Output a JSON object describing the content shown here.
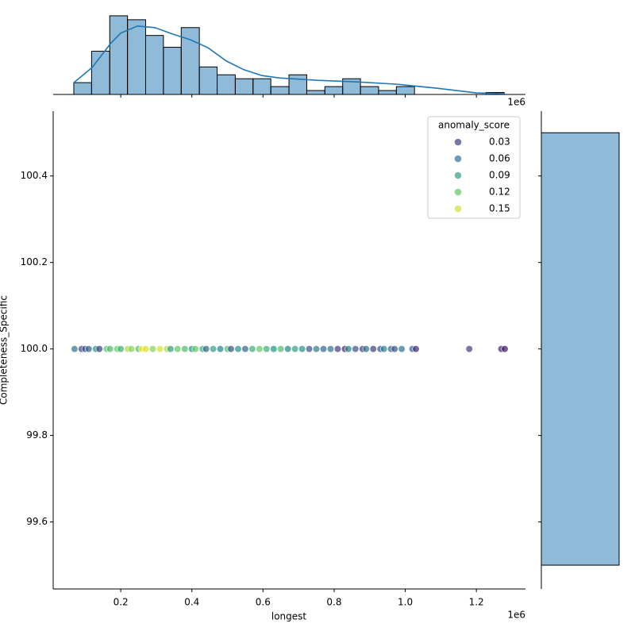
{
  "chart_data": {
    "type": "jointplot",
    "xlabel": "longest",
    "ylabel": "Completeness_Specific",
    "x_offset_text": "1e6",
    "xlim": [
      0.01,
      1.338
    ],
    "ylim": [
      99.445,
      100.55
    ],
    "xticks": [
      0.2,
      0.4,
      0.6,
      0.8,
      {
        "value": 1,
        "label": "1.0"
      },
      1.2
    ],
    "yticks": [
      99.6,
      99.8,
      {
        "value": 100,
        "label": "100.0"
      },
      100.2,
      100.4
    ],
    "hue_label": "anomaly_score",
    "hue_lim": [
      0,
      0.16
    ],
    "colormap": [
      "#440154",
      "#3b528b",
      "#21918c",
      "#5ec962",
      "#fde725"
    ],
    "legend_values": [
      0.03,
      0.06,
      0.09,
      0.12,
      0.15
    ],
    "legend_position": "upper right",
    "scatter": {
      "x": [
        0.07,
        0.09,
        0.1,
        0.11,
        0.13,
        0.14,
        0.16,
        0.17,
        0.19,
        0.2,
        0.22,
        0.23,
        0.25,
        0.26,
        0.27,
        0.29,
        0.31,
        0.33,
        0.34,
        0.36,
        0.38,
        0.4,
        0.41,
        0.43,
        0.44,
        0.46,
        0.48,
        0.5,
        0.51,
        0.53,
        0.55,
        0.57,
        0.59,
        0.61,
        0.63,
        0.65,
        0.67,
        0.69,
        0.71,
        0.73,
        0.75,
        0.77,
        0.79,
        0.81,
        0.83,
        0.84,
        0.86,
        0.88,
        0.89,
        0.91,
        0.93,
        0.94,
        0.96,
        0.97,
        0.99,
        1.02,
        1.03,
        1.18,
        1.27,
        1.28
      ],
      "y": [
        100,
        100,
        100,
        100,
        100,
        100,
        100,
        100,
        100,
        100,
        100,
        100,
        100,
        100,
        100,
        100,
        100,
        100,
        100,
        100,
        100,
        100,
        100,
        100,
        100,
        100,
        100,
        100,
        100,
        100,
        100,
        100,
        100,
        100,
        100,
        100,
        100,
        100,
        100,
        100,
        100,
        100,
        100,
        100,
        100,
        100,
        100,
        100,
        100,
        100,
        100,
        100,
        100,
        100,
        100,
        100,
        100,
        100,
        100,
        100
      ],
      "hue": [
        0.06,
        0.03,
        0.04,
        0.05,
        0.08,
        0.03,
        0.12,
        0.11,
        0.12,
        0.1,
        0.14,
        0.13,
        0.11,
        0.16,
        0.15,
        0.13,
        0.15,
        0.14,
        0.09,
        0.12,
        0.11,
        0.08,
        0.12,
        0.1,
        0.05,
        0.09,
        0.07,
        0.11,
        0.04,
        0.08,
        0.05,
        0.1,
        0.12,
        0.1,
        0.08,
        0.11,
        0.07,
        0.09,
        0.08,
        0.04,
        0.07,
        0.05,
        0.06,
        0.03,
        0.02,
        0.07,
        0.04,
        0.03,
        0.06,
        0.03,
        0.04,
        0.07,
        0.05,
        0.04,
        0.06,
        0.05,
        0.02,
        0.03,
        0.02,
        0.01
      ]
    },
    "top_hist": {
      "color": "#1f77b4",
      "bins": [
        0.068,
        0.118,
        0.169,
        0.219,
        0.27,
        0.32,
        0.37,
        0.421,
        0.471,
        0.522,
        0.572,
        0.622,
        0.673,
        0.723,
        0.774,
        0.824,
        0.874,
        0.925,
        0.975,
        1.026,
        1.076,
        1.126,
        1.177,
        1.227,
        1.278
      ],
      "counts": [
        3,
        11,
        20,
        19,
        15,
        12,
        17,
        7,
        5,
        4,
        4,
        2,
        5,
        1,
        2,
        4,
        2,
        1,
        2,
        0,
        0,
        0,
        0,
        0.5
      ],
      "ylim": [
        0,
        22
      ],
      "kde_x": [
        0.068,
        0.12,
        0.171,
        0.2,
        0.247,
        0.296,
        0.345,
        0.396,
        0.445,
        0.497,
        0.546,
        0.597,
        0.646,
        0.753,
        0.865,
        0.977,
        1.088,
        1.2,
        1.278
      ],
      "kde_y": [
        3.0,
        6.9,
        12.9,
        15.6,
        17.4,
        17.0,
        15.4,
        13.9,
        11.9,
        8.5,
        6.3,
        4.8,
        4.2,
        3.6,
        3.2,
        2.6,
        1.6,
        0.4,
        0.2
      ]
    },
    "right_hist": {
      "bins": [
        99.5,
        100.5
      ],
      "counts": [
        60
      ],
      "xlim": [
        0,
        60
      ]
    }
  }
}
